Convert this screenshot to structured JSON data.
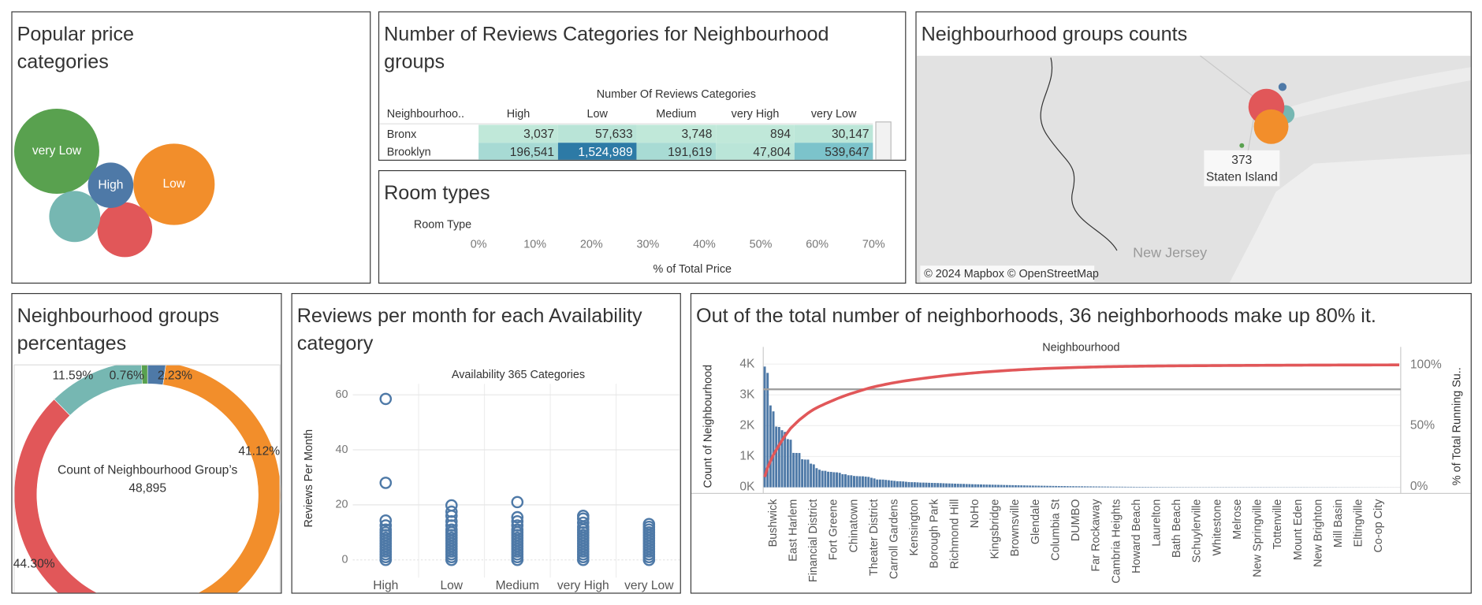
{
  "chart_data": [
    {
      "type": "bubble",
      "title": "Popular price categories",
      "categories": [
        "very Low",
        "Low",
        null,
        null,
        "High"
      ],
      "values": [
        2025,
        1849,
        841,
        729,
        576
      ],
      "colors": [
        "#59a14f",
        "#f28e2b",
        "#e15759",
        "#76b7b2",
        "#4e79a7"
      ]
    },
    {
      "type": "bar",
      "orientation": "horizontal",
      "title": "Room types",
      "y_label": "Room Type",
      "x_label": "% of Total Price",
      "categories": [],
      "values": [],
      "color": "#4e79a7",
      "xlim": [
        0,
        73
      ],
      "xticks": [
        {
          "value": 0,
          "label": "0%"
        },
        {
          "value": 10,
          "label": "10%"
        },
        {
          "value": 20,
          "label": "20%"
        },
        {
          "value": 30,
          "label": "30%"
        },
        {
          "value": 40,
          "label": "40%"
        },
        {
          "value": 50,
          "label": "50%"
        },
        {
          "value": 60,
          "label": "60%"
        },
        {
          "value": 70,
          "label": "70%"
        }
      ]
    },
    {
      "type": "map",
      "title": "Neighbourhood groups counts",
      "categories": [
        null,
        null,
        null,
        null,
        "Staten Island"
      ],
      "values": [
        5667,
        1090,
        21660,
        20106,
        373
      ],
      "colors": [
        "#76b7b2",
        "#4e79a7",
        "#e15759",
        "#f28e2b",
        "#59a14f"
      ],
      "annotation": "New Jersey",
      "attribution": "© 2024 Mapbox © OpenStreetMap"
    },
    {
      "type": "donut",
      "title": "Neighbourhood groups percentages",
      "values": [
        2.23,
        41.12,
        44.3,
        11.59,
        0.76
      ],
      "value_labels": [
        "2.23%",
        "41.12%",
        "44.30%",
        "11.59%",
        "0.76%"
      ],
      "colors": [
        "#4e79a7",
        "#f28e2b",
        "#e15759",
        "#76b7b2",
        "#59a14f"
      ],
      "center_label": "Count of Neighbourhood Group’s",
      "center_value": "48,895"
    },
    {
      "type": "strip",
      "title": "Reviews per month for each Availability category",
      "x_header": "Availability 365 Categories",
      "y_label": "Reviews Per Month",
      "categories": [
        "High",
        "Low",
        "Medium",
        "very High",
        "very Low"
      ],
      "values": [
        [
          58.5,
          28,
          14.3,
          12.5,
          11,
          10,
          9,
          8,
          7,
          6,
          5,
          4,
          3,
          2,
          1,
          0
        ],
        [
          19.8,
          17.5,
          16,
          14,
          12.5,
          11,
          10,
          9,
          8,
          7,
          6,
          5,
          4,
          3,
          2,
          1,
          0
        ],
        [
          21,
          15.5,
          14,
          12.5,
          11,
          10,
          9,
          8,
          7,
          6,
          5,
          4,
          3,
          2,
          1,
          0
        ],
        [
          16,
          15,
          13.5,
          12,
          11,
          10,
          9,
          8,
          7,
          6,
          5,
          4,
          3,
          2,
          1,
          0
        ],
        [
          13,
          12,
          11,
          10,
          9,
          8,
          7,
          6,
          5,
          4,
          3,
          2,
          1,
          0
        ]
      ],
      "color": "#4e79a7",
      "ylim": [
        -3,
        64
      ],
      "yticks": [
        0,
        20,
        40,
        60
      ],
      "grid": true
    },
    {
      "type": "pareto",
      "title": "Out of the total number of neighborhoods, 36 neighborhoods make up 80% it.",
      "x_header": "Neighbourhood",
      "y_label": "Count of Neighbourhood",
      "y2_label": "% of Total Running Su..",
      "categories": [
        null,
        null,
        null,
        "Bushwick",
        null,
        null,
        null,
        null,
        null,
        null,
        "East Harlem",
        null,
        null,
        null,
        null,
        null,
        null,
        "Financial District",
        null,
        null,
        null,
        null,
        null,
        null,
        "Fort Greene",
        null,
        null,
        null,
        null,
        null,
        null,
        "Chinatown",
        null,
        null,
        null,
        null,
        null,
        null,
        "Theater District",
        null,
        null,
        null,
        null,
        null,
        null,
        "Carroll Gardens",
        null,
        null,
        null,
        null,
        null,
        null,
        "Kensington",
        null,
        null,
        null,
        null,
        null,
        null,
        "Borough Park",
        null,
        null,
        null,
        null,
        null,
        null,
        "Richmond Hill",
        null,
        null,
        null,
        null,
        null,
        null,
        "NoHo",
        null,
        null,
        null,
        null,
        null,
        null,
        "Kingsbridge",
        null,
        null,
        null,
        null,
        null,
        null,
        "Brownsville",
        null,
        null,
        null,
        null,
        null,
        null,
        "Glendale",
        null,
        null,
        null,
        null,
        null,
        null,
        "Columbia St",
        null,
        null,
        null,
        null,
        null,
        null,
        "DUMBO",
        null,
        null,
        null,
        null,
        null,
        null,
        "Far Rockaway",
        null,
        null,
        null,
        null,
        null,
        null,
        "Cambria Heights",
        null,
        null,
        null,
        null,
        null,
        null,
        "Howard Beach",
        null,
        null,
        null,
        null,
        null,
        null,
        "Laurelton",
        null,
        null,
        null,
        null,
        null,
        null,
        "Bath Beach",
        null,
        null,
        null,
        null,
        null,
        null,
        "Schuylerville",
        null,
        null,
        null,
        null,
        null,
        null,
        "Whitestone",
        null,
        null,
        null,
        null,
        null,
        null,
        "Melrose",
        null,
        null,
        null,
        null,
        null,
        null,
        "New Springville",
        null,
        null,
        null,
        null,
        null,
        null,
        "Tottenville",
        null,
        null,
        null,
        null,
        null,
        null,
        "Mount Eden",
        null,
        null,
        null,
        null,
        null,
        null,
        "New Brighton",
        null,
        null,
        null,
        null,
        null,
        null,
        "Mill Basin",
        null,
        null,
        null,
        null,
        null,
        null,
        "Eltingville",
        null,
        null,
        null,
        null,
        null,
        null,
        "Co-op City",
        null,
        null,
        null,
        null,
        null,
        null,
        null
      ],
      "values": [
        3920,
        3714,
        2658,
        2465,
        1971,
        1958,
        1853,
        1798,
        1564,
        1545,
        1117,
        1115,
        1113,
        911,
        900,
        899,
        768,
        744,
        621,
        572,
        537,
        535,
        506,
        500,
        489,
        485,
        470,
        426,
        423,
        392,
        390,
        368,
        363,
        358,
        357,
        346,
        338,
        309,
        288,
        253,
        252,
        250,
        240,
        230,
        218,
        209,
        197,
        196,
        190,
        180,
        170,
        166,
        165,
        160,
        153,
        152,
        150,
        146,
        143,
        141,
        138,
        135,
        131,
        127,
        125,
        122,
        118,
        115,
        112,
        110,
        106,
        104,
        100,
        98,
        96,
        93,
        90,
        88,
        86,
        84,
        82,
        80,
        78,
        75,
        73,
        71,
        69,
        67,
        65,
        63,
        61,
        59,
        57,
        55,
        54,
        52,
        50,
        49,
        47,
        46,
        44,
        43,
        41,
        40,
        39,
        37,
        36,
        35,
        34,
        33,
        32,
        31,
        30,
        29,
        28,
        27,
        26,
        25,
        24,
        23,
        22,
        21,
        20,
        20,
        19,
        18,
        17,
        17,
        16,
        15,
        15,
        14,
        14,
        13,
        13,
        12,
        12,
        11,
        11,
        10,
        10,
        10,
        9,
        9,
        9,
        8,
        8,
        8,
        7,
        7,
        7,
        7,
        7,
        7,
        7,
        7,
        7,
        7,
        7,
        7,
        7,
        7,
        6,
        6,
        6,
        6,
        6,
        6,
        6,
        6,
        6,
        6,
        6,
        6,
        6,
        6,
        5,
        5,
        5,
        5,
        5,
        5,
        5,
        5,
        5,
        5,
        5,
        5,
        5,
        4,
        4,
        4,
        4,
        4,
        4,
        4,
        4,
        4,
        4,
        3,
        3,
        3,
        3,
        3,
        3,
        3,
        3,
        2,
        2,
        2,
        2,
        2,
        2,
        2,
        1,
        1,
        1,
        1,
        1,
        1,
        1
      ],
      "color": "#4e79a7",
      "line_color": "#e15759",
      "ylim": [
        -200,
        4250
      ],
      "yticks": [
        {
          "value": 0,
          "label": "0K"
        },
        {
          "value": 1000,
          "label": "1K"
        },
        {
          "value": 2000,
          "label": "2K"
        },
        {
          "value": 3000,
          "label": "3K"
        },
        {
          "value": 4000,
          "label": "4K"
        }
      ],
      "y2lim": [
        -5.5,
        107
      ],
      "y2ticks": [
        {
          "value": 0,
          "label": "0%"
        },
        {
          "value": 50,
          "label": "50%"
        },
        {
          "value": 100,
          "label": "100%"
        }
      ],
      "reference_line": 80,
      "grid": true
    }
  ],
  "reviews_table": {
    "title": "Number of Reviews Categories for Neighbourhood groups",
    "column_group": "Number Of Reviews Categories",
    "columns": [
      "Neighbourhoo..",
      "High",
      "Low",
      "Medium",
      "very High",
      "very Low"
    ],
    "rows": [
      [
        "Bronx",
        "3,037",
        "57,633",
        "3,748",
        "894",
        "30,147"
      ],
      [
        "Brooklyn",
        "196,541",
        "1,524,989",
        "191,619",
        "47,804",
        "539,647"
      ]
    ]
  }
}
